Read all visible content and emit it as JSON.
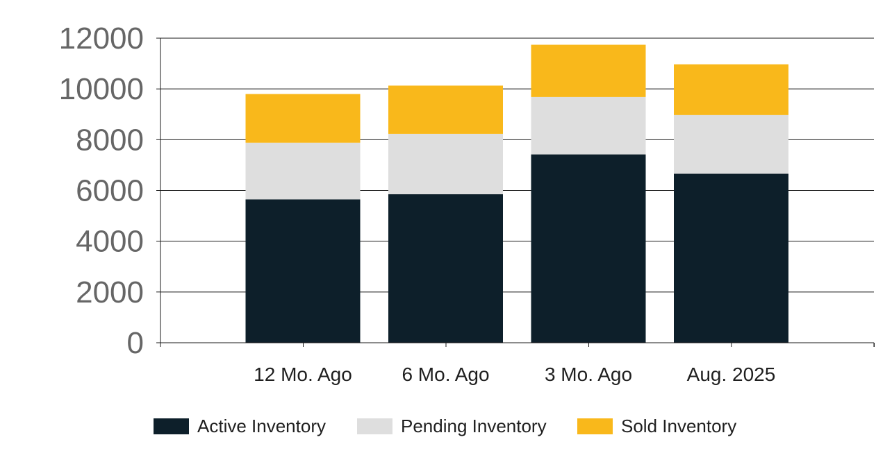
{
  "chart_data": {
    "type": "bar",
    "stacked": true,
    "categories": [
      "12 Mo. Ago",
      "6 Mo. Ago",
      "3 Mo. Ago",
      "Aug. 2025"
    ],
    "series": [
      {
        "name": "Active Inventory",
        "values": [
          5650,
          5850,
          7420,
          6660
        ],
        "color": "#0d1f2a"
      },
      {
        "name": "Pending Inventory",
        "values": [
          2230,
          2380,
          2260,
          2310
        ],
        "color": "#dedede"
      },
      {
        "name": "Sold Inventory",
        "values": [
          1920,
          1900,
          2060,
          2000
        ],
        "color": "#f9b81b"
      }
    ],
    "yticks": [
      "0",
      "2000",
      "4000",
      "6000",
      "8000",
      "10000",
      "12000"
    ],
    "ylim": [
      0,
      12000
    ],
    "grid": true,
    "legend": "bottom",
    "title": "",
    "xlabel": "",
    "ylabel": ""
  }
}
